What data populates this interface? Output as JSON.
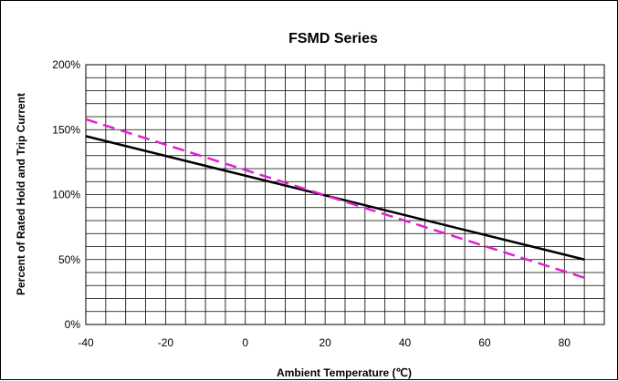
{
  "chart_data": {
    "type": "line",
    "title": "FSMD Series",
    "xlabel": "Ambient Temperature (℃)",
    "ylabel": "Percent of Rated Hold  and Trip Current",
    "xlim": [
      -40,
      90
    ],
    "ylim": [
      0,
      200
    ],
    "x_ticks": [
      -40,
      -20,
      0,
      20,
      40,
      60,
      80
    ],
    "x_tick_labels": [
      "-40",
      "-20",
      "0",
      "20",
      "40",
      "60",
      "80"
    ],
    "y_ticks": [
      0,
      50,
      100,
      150,
      200
    ],
    "y_tick_labels": [
      "0%",
      "50%",
      "100%",
      "150%",
      "200%"
    ],
    "x_minor_step": 5,
    "y_minor_step": 10,
    "grid": true,
    "series": [
      {
        "style": "solid",
        "color": "#000000",
        "x": [
          -40,
          85
        ],
        "y": [
          145,
          50
        ]
      },
      {
        "style": "dashed",
        "color": "#E020D0",
        "x": [
          -40,
          85
        ],
        "y": [
          158,
          36
        ]
      }
    ]
  }
}
